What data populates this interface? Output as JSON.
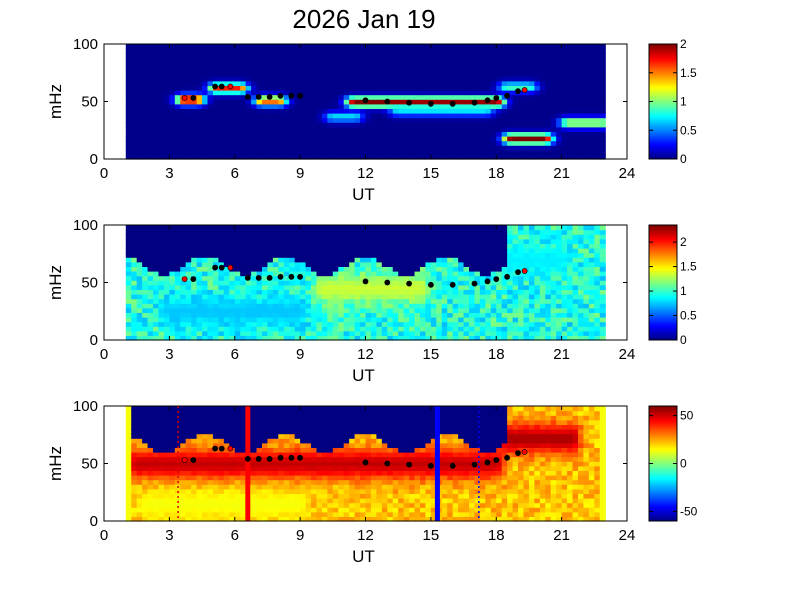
{
  "title": "2026 Jan 19",
  "chart_data": [
    {
      "type": "heatmap",
      "xlabel": "UT",
      "ylabel": "mHz",
      "xlim": [
        0,
        24
      ],
      "ylim": [
        0,
        100
      ],
      "xticks": [
        0,
        3,
        6,
        9,
        12,
        15,
        18,
        21,
        24
      ],
      "yticks": [
        0,
        50,
        100
      ],
      "colorbar": {
        "min": 0,
        "max": 2,
        "ticks": [
          0,
          0.5,
          1,
          1.5,
          2
        ],
        "tick_labels": [
          "0",
          "0.5",
          "1",
          "1.5",
          "2"
        ]
      },
      "data_range_ut": [
        1,
        23
      ],
      "background_level": 0.02,
      "features": [
        {
          "ut": [
            3.7,
            4.2
          ],
          "mhz": 52,
          "level": 2.0
        },
        {
          "ut": [
            5.2,
            6.2
          ],
          "mhz": 62,
          "level": 1.7
        },
        {
          "ut": [
            7.3,
            8.0
          ],
          "mhz": 51,
          "level": 1.6
        },
        {
          "ut": [
            10.5,
            11.5
          ],
          "mhz": 37,
          "level": 0.7
        },
        {
          "ut": [
            11.5,
            18.0
          ],
          "mhz": 50,
          "level": 2.0
        },
        {
          "ut": [
            13.5,
            17.5
          ],
          "mhz": 42,
          "level": 0.7
        },
        {
          "ut": [
            18.5,
            19.5
          ],
          "mhz": 63,
          "level": 0.9
        },
        {
          "ut": [
            18.7,
            20.2
          ],
          "mhz": 18,
          "level": 2.0
        },
        {
          "ut": [
            21.3,
            22.8
          ],
          "mhz": 32,
          "level": 1.2
        }
      ],
      "ridge": {
        "ut": [
          3.7,
          4.1,
          5.1,
          5.4,
          5.8,
          6.6,
          7.1,
          7.6,
          8.1,
          8.6,
          9.0,
          12.0,
          13.0,
          14.0,
          15.0,
          16.0,
          17.0,
          17.6,
          18.0,
          18.5,
          19.0,
          19.3
        ],
        "mhz": [
          53,
          53,
          63,
          63,
          63,
          54,
          54,
          54,
          55,
          55,
          55,
          51,
          50,
          49,
          48,
          48,
          49,
          51,
          53,
          55,
          59,
          60
        ]
      }
    },
    {
      "type": "heatmap",
      "xlabel": "UT",
      "ylabel": "mHz",
      "xlim": [
        0,
        24
      ],
      "ylim": [
        0,
        100
      ],
      "xticks": [
        0,
        3,
        6,
        9,
        12,
        15,
        18,
        21,
        24
      ],
      "yticks": [
        0,
        50,
        100
      ],
      "colorbar": {
        "min": 0,
        "max": 2.35,
        "ticks": [
          0,
          0.5,
          1,
          1.5,
          2
        ],
        "tick_labels": [
          "0",
          "0.5",
          "1",
          "1.5",
          "2"
        ]
      },
      "data_range_ut": [
        1,
        23
      ],
      "upper_mask_mhz": 65,
      "background_level": 0.95,
      "features": [
        {
          "ut": [
            10.0,
            14.5
          ],
          "mhz": 45,
          "level": 1.35
        },
        {
          "ut": [
            3.0,
            9.0
          ],
          "mhz": 25,
          "level": 0.75
        },
        {
          "ut": [
            18.5,
            21.0
          ],
          "mhz": 70,
          "level": 0.85
        }
      ],
      "ridge": {
        "ut": [
          3.7,
          4.1,
          5.1,
          5.4,
          5.8,
          6.6,
          7.1,
          7.6,
          8.1,
          8.6,
          9.0,
          12.0,
          13.0,
          14.0,
          15.0,
          16.0,
          17.0,
          17.6,
          18.0,
          18.5,
          19.0,
          19.3
        ],
        "mhz": [
          53,
          53,
          63,
          63,
          63,
          54,
          54,
          54,
          55,
          55,
          55,
          51,
          50,
          49,
          48,
          48,
          49,
          51,
          53,
          55,
          59,
          60
        ]
      }
    },
    {
      "type": "heatmap",
      "xlabel": "UT",
      "ylabel": "mHz",
      "xlim": [
        0,
        24
      ],
      "ylim": [
        0,
        100
      ],
      "xticks": [
        0,
        3,
        6,
        9,
        12,
        15,
        18,
        21,
        24
      ],
      "yticks": [
        0,
        50,
        100
      ],
      "colorbar": {
        "min": -60,
        "max": 60,
        "ticks": [
          -50,
          0,
          50
        ],
        "tick_labels": [
          "-50",
          "0",
          "50"
        ]
      },
      "data_range_ut": [
        1,
        23
      ],
      "upper_mask_mhz": 68,
      "background_level": 22,
      "features": [
        {
          "ut": [
            1.5,
            18.0
          ],
          "mhz": 50,
          "level": 52
        },
        {
          "ut": [
            18.5,
            21.5
          ],
          "mhz": 72,
          "level": 55
        },
        {
          "ut": [
            2.0,
            9.0
          ],
          "mhz": 15,
          "level": 14
        }
      ],
      "vertical_lines": [
        {
          "ut": 3.4,
          "style": "dotted",
          "color": "#e00000"
        },
        {
          "ut": 6.6,
          "style": "solid",
          "color": "#ff0000"
        },
        {
          "ut": 15.3,
          "style": "solid",
          "color": "#0000ff"
        },
        {
          "ut": 17.2,
          "style": "dotted",
          "color": "#0000ff"
        }
      ],
      "ridge": {
        "ut": [
          3.7,
          4.1,
          5.1,
          5.4,
          5.8,
          6.6,
          7.1,
          7.6,
          8.1,
          8.6,
          9.0,
          12.0,
          13.0,
          14.0,
          15.0,
          16.0,
          17.0,
          17.6,
          18.0,
          18.5,
          19.0,
          19.3
        ],
        "mhz": [
          53,
          53,
          63,
          63,
          63,
          54,
          54,
          54,
          55,
          55,
          55,
          51,
          50,
          49,
          48,
          48,
          49,
          51,
          53,
          55,
          59,
          60
        ]
      }
    }
  ]
}
